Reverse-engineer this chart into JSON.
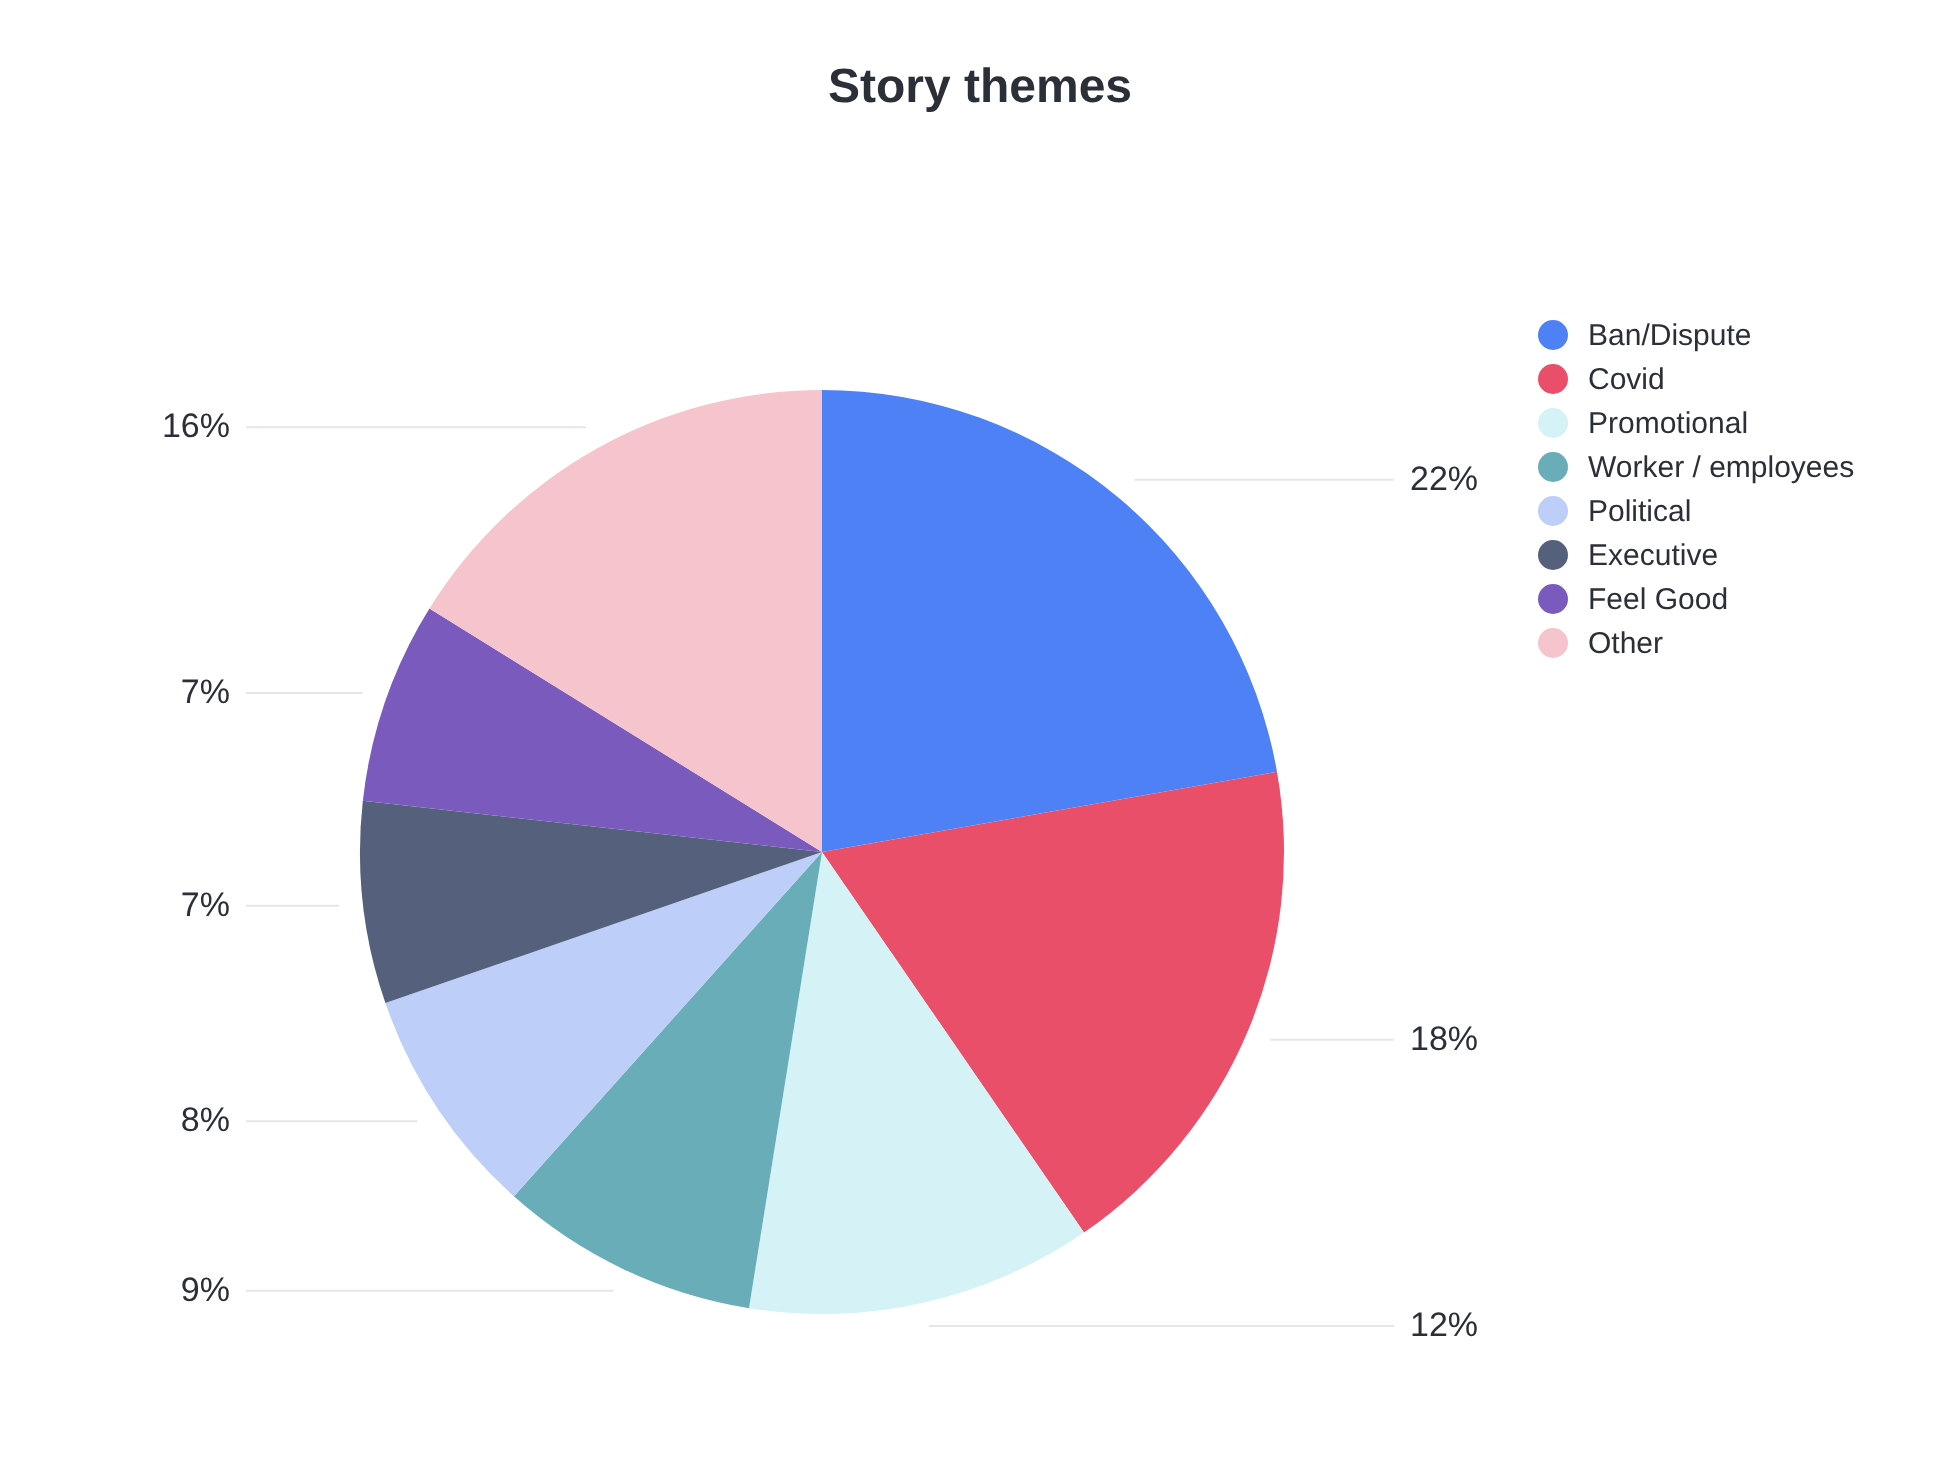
{
  "chart_data": {
    "type": "pie",
    "title": "Story themes",
    "categories": [
      "Ban/Dispute",
      "Covid",
      "Promotional",
      "Worker / employees",
      "Political",
      "Executive",
      "Feel Good",
      "Other"
    ],
    "values": [
      22,
      18,
      12,
      9,
      8,
      7,
      7,
      16
    ],
    "value_labels": [
      "22%",
      "18%",
      "12%",
      "9%",
      "8%",
      "7%",
      "7%",
      "16%"
    ],
    "colors": [
      "#4e80f6",
      "#ea4f6a",
      "#d5f3f7",
      "#68adb7",
      "#bdcef8",
      "#55617c",
      "#7a5bbd",
      "#f6c4cc"
    ],
    "legend": "top right"
  }
}
